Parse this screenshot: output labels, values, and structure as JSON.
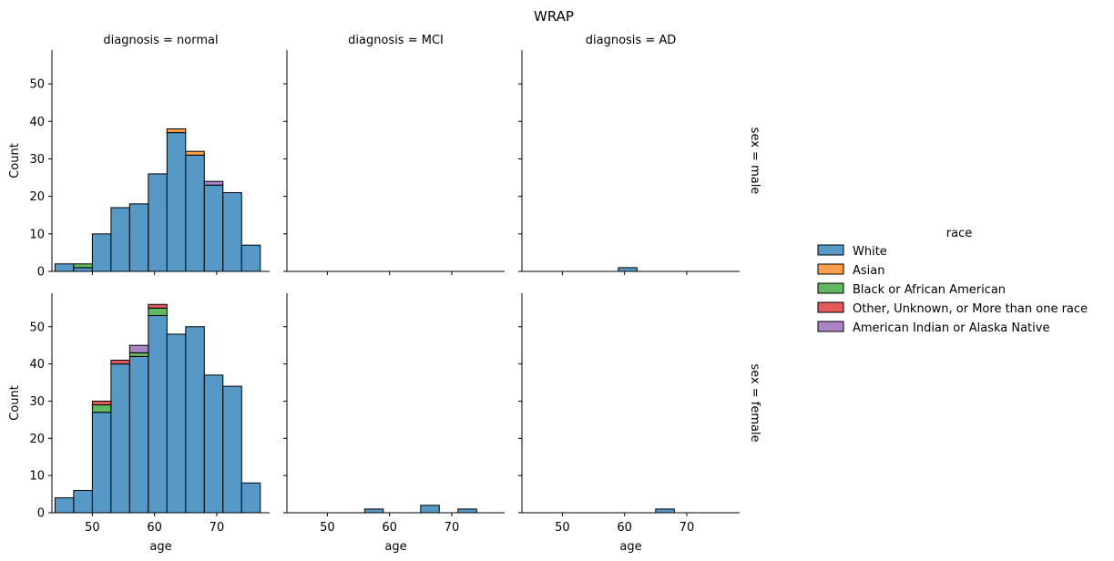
{
  "title": "WRAP",
  "colors": {
    "White": "#5698c6",
    "Asian": "#ff9e4a",
    "Black or African American": "#60b960",
    "Other, Unknown, or More than one race": "#e25a5a",
    "American Indian or Alaska Native": "#a985c8"
  },
  "legend": {
    "title": "race",
    "entries": [
      "White",
      "Asian",
      "Black or African American",
      "Other, Unknown, or More than one race",
      "American Indian or Alaska Native"
    ]
  },
  "chart_data": {
    "type": "bar",
    "subtype": "faceted-stacked-histogram",
    "title": "WRAP",
    "xlabel": "age",
    "ylabel": "Count",
    "xlim": [
      43.5,
      78.5
    ],
    "ylim": [
      0,
      59
    ],
    "xticks": [
      50,
      60,
      70
    ],
    "yticks": [
      0,
      10,
      20,
      30,
      40,
      50
    ],
    "column_facet_labels": [
      "diagnosis = normal",
      "diagnosis = MCI",
      "diagnosis = AD"
    ],
    "row_facet_labels": [
      "sex = male",
      "sex = female"
    ],
    "bin_edges": [
      44,
      47,
      50,
      53,
      56,
      59,
      62,
      65,
      68,
      71,
      74,
      77
    ],
    "legend_position": "right",
    "stack_order": [
      "White",
      "Asian",
      "Black or African American",
      "Other, Unknown, or More than one race",
      "American Indian or Alaska Native"
    ],
    "panels": [
      {
        "row": 0,
        "col": 0,
        "series": [
          {
            "name": "White",
            "values": [
              2,
              1,
              10,
              17,
              18,
              26,
              37,
              31,
              23,
              21,
              7
            ]
          },
          {
            "name": "Asian",
            "values": [
              0,
              0,
              0,
              0,
              0,
              0,
              1,
              1,
              0,
              0,
              0
            ]
          },
          {
            "name": "Black or African American",
            "values": [
              0,
              1,
              0,
              0,
              0,
              0,
              0,
              0,
              0,
              0,
              0
            ]
          },
          {
            "name": "Other, Unknown, or More than one race",
            "values": [
              0,
              0,
              0,
              0,
              0,
              0,
              0,
              0,
              0,
              0,
              0
            ]
          },
          {
            "name": "American Indian or Alaska Native",
            "values": [
              0,
              0,
              0,
              0,
              0,
              0,
              0,
              0,
              1,
              0,
              0
            ]
          }
        ]
      },
      {
        "row": 0,
        "col": 1,
        "series": [
          {
            "name": "White",
            "values": [
              0,
              0,
              0,
              0,
              0,
              0,
              0,
              0,
              0,
              0,
              0
            ]
          }
        ]
      },
      {
        "row": 0,
        "col": 2,
        "series": [
          {
            "name": "White",
            "values": [
              0,
              0,
              0,
              0,
              0,
              1,
              0,
              0,
              0,
              0,
              0
            ]
          }
        ]
      },
      {
        "row": 1,
        "col": 0,
        "series": [
          {
            "name": "White",
            "values": [
              4,
              6,
              27,
              40,
              42,
              53,
              48,
              50,
              37,
              34,
              8
            ]
          },
          {
            "name": "Asian",
            "values": [
              0,
              0,
              0,
              0,
              0,
              0,
              0,
              0,
              0,
              0,
              0
            ]
          },
          {
            "name": "Black or African American",
            "values": [
              0,
              0,
              2,
              0,
              1,
              2,
              0,
              0,
              0,
              0,
              0
            ]
          },
          {
            "name": "Other, Unknown, or More than one race",
            "values": [
              0,
              0,
              1,
              1,
              0,
              1,
              0,
              0,
              0,
              0,
              0
            ]
          },
          {
            "name": "American Indian or Alaska Native",
            "values": [
              0,
              0,
              0,
              0,
              2,
              0,
              0,
              0,
              0,
              0,
              0
            ]
          }
        ]
      },
      {
        "row": 1,
        "col": 1,
        "series": [
          {
            "name": "White",
            "values": [
              0,
              0,
              0,
              0,
              1,
              0,
              0,
              2,
              0,
              1,
              0
            ]
          }
        ]
      },
      {
        "row": 1,
        "col": 2,
        "series": [
          {
            "name": "White",
            "values": [
              0,
              0,
              0,
              0,
              0,
              0,
              0,
              1,
              0,
              0,
              0
            ]
          }
        ]
      }
    ]
  }
}
